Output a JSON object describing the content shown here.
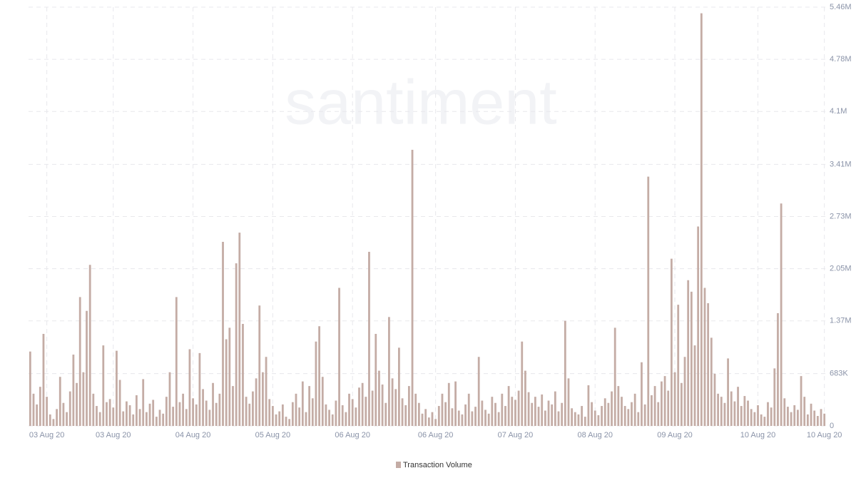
{
  "chart_data": {
    "type": "bar",
    "watermark": "santiment",
    "series": [
      {
        "name": "Transaction Volume",
        "color": "#c4aca5",
        "values": [
          970000,
          420000,
          280000,
          510000,
          1200000,
          380000,
          150000,
          90000,
          220000,
          640000,
          300000,
          180000,
          450000,
          930000,
          560000,
          1680000,
          700000,
          1500000,
          2100000,
          420000,
          260000,
          180000,
          1050000,
          310000,
          350000,
          240000,
          980000,
          600000,
          190000,
          320000,
          270000,
          150000,
          400000,
          220000,
          610000,
          180000,
          290000,
          340000,
          120000,
          210000,
          160000,
          380000,
          700000,
          250000,
          1680000,
          310000,
          420000,
          220000,
          1000000,
          360000,
          280000,
          950000,
          480000,
          330000,
          210000,
          560000,
          300000,
          420000,
          2400000,
          1130000,
          1280000,
          520000,
          2120000,
          2520000,
          1330000,
          380000,
          290000,
          450000,
          620000,
          1570000,
          700000,
          900000,
          350000,
          260000,
          150000,
          190000,
          280000,
          120000,
          90000,
          310000,
          420000,
          240000,
          580000,
          180000,
          520000,
          360000,
          1100000,
          1300000,
          640000,
          280000,
          210000,
          150000,
          330000,
          1800000,
          270000,
          180000,
          420000,
          350000,
          240000,
          500000,
          560000,
          380000,
          2270000,
          460000,
          1200000,
          720000,
          540000,
          300000,
          1420000,
          620000,
          480000,
          1020000,
          360000,
          270000,
          520000,
          3600000,
          420000,
          300000,
          160000,
          220000,
          110000,
          180000,
          90000,
          260000,
          420000,
          310000,
          560000,
          230000,
          580000,
          200000,
          150000,
          280000,
          420000,
          190000,
          250000,
          900000,
          330000,
          210000,
          160000,
          380000,
          300000,
          180000,
          420000,
          260000,
          520000,
          380000,
          340000,
          460000,
          1100000,
          720000,
          440000,
          300000,
          380000,
          250000,
          410000,
          200000,
          330000,
          280000,
          450000,
          190000,
          300000,
          1370000,
          620000,
          230000,
          180000,
          150000,
          260000,
          120000,
          530000,
          310000,
          200000,
          140000,
          260000,
          360000,
          300000,
          450000,
          1280000,
          520000,
          380000,
          260000,
          220000,
          310000,
          420000,
          180000,
          830000,
          280000,
          3250000,
          400000,
          520000,
          310000,
          580000,
          650000,
          460000,
          2180000,
          700000,
          1580000,
          560000,
          900000,
          1900000,
          1750000,
          1050000,
          2600000,
          5380000,
          1800000,
          1600000,
          1150000,
          680000,
          420000,
          380000,
          300000,
          880000,
          450000,
          320000,
          510000,
          260000,
          390000,
          330000,
          220000,
          180000,
          270000,
          150000,
          120000,
          310000,
          240000,
          750000,
          1470000,
          2900000,
          360000,
          250000,
          180000,
          270000,
          210000,
          650000,
          380000,
          150000,
          290000,
          200000,
          130000,
          220000,
          160000
        ]
      }
    ],
    "categories": [
      null,
      null,
      null,
      null,
      null,
      "03 Aug 20",
      null,
      null,
      null,
      null,
      null,
      null,
      null,
      null,
      null,
      null,
      null,
      null,
      null,
      null,
      null,
      null,
      null,
      null,
      null,
      "03 Aug 20",
      null,
      null,
      null,
      null,
      null,
      null,
      null,
      null,
      null,
      null,
      null,
      null,
      null,
      null,
      null,
      null,
      null,
      null,
      null,
      null,
      null,
      null,
      null,
      "04 Aug 20",
      null,
      null,
      null,
      null,
      null,
      null,
      null,
      null,
      null,
      null,
      null,
      null,
      null,
      null,
      null,
      null,
      null,
      null,
      null,
      null,
      null,
      null,
      null,
      "05 Aug 20",
      null,
      null,
      null,
      null,
      null,
      null,
      null,
      null,
      null,
      null,
      null,
      null,
      null,
      null,
      null,
      null,
      null,
      null,
      null,
      null,
      null,
      null,
      null,
      "06 Aug 20",
      null,
      null,
      null,
      null,
      null,
      null,
      null,
      null,
      null,
      null,
      null,
      null,
      null,
      null,
      null,
      null,
      null,
      null,
      null,
      null,
      null,
      null,
      null,
      null,
      "06 Aug 20",
      null,
      null,
      null,
      null,
      null,
      null,
      null,
      null,
      null,
      null,
      null,
      null,
      null,
      null,
      null,
      null,
      null,
      null,
      null,
      null,
      null,
      null,
      null,
      "07 Aug 20",
      null,
      null,
      null,
      null,
      null,
      null,
      null,
      null,
      null,
      null,
      null,
      null,
      null,
      null,
      null,
      null,
      null,
      null,
      null,
      null,
      null,
      null,
      null,
      "08 Aug 20",
      null,
      null,
      null,
      null,
      null,
      null,
      null,
      null,
      null,
      null,
      null,
      null,
      null,
      null,
      null,
      null,
      null,
      null,
      null,
      null,
      null,
      null,
      null,
      "09 Aug 20",
      null,
      null,
      null,
      null,
      null,
      null,
      null,
      null,
      null,
      null,
      null,
      null,
      null,
      null,
      null,
      null,
      null,
      null,
      null,
      null,
      null,
      null,
      null,
      null,
      "10 Aug 20",
      null,
      null,
      null,
      null,
      null,
      null,
      null,
      null,
      null,
      null,
      null,
      null,
      null,
      null,
      null,
      null,
      null,
      null,
      null,
      "10 Aug 20"
    ],
    "ylim": [
      0,
      5460000
    ],
    "yticks": [
      0,
      {
        "value": 683000,
        "label": "683K"
      },
      {
        "value": 1370000,
        "label": "1.37M"
      },
      {
        "value": 2050000,
        "label": "2.05M"
      },
      {
        "value": 2730000,
        "label": "2.73M"
      },
      {
        "value": 3410000,
        "label": "3.41M"
      },
      {
        "value": 4100000,
        "label": "4.1M"
      },
      {
        "value": 4780000,
        "label": "4.78M"
      },
      {
        "value": 5460000,
        "label": "5.46M"
      }
    ],
    "grid": true,
    "legend": "bottom"
  }
}
